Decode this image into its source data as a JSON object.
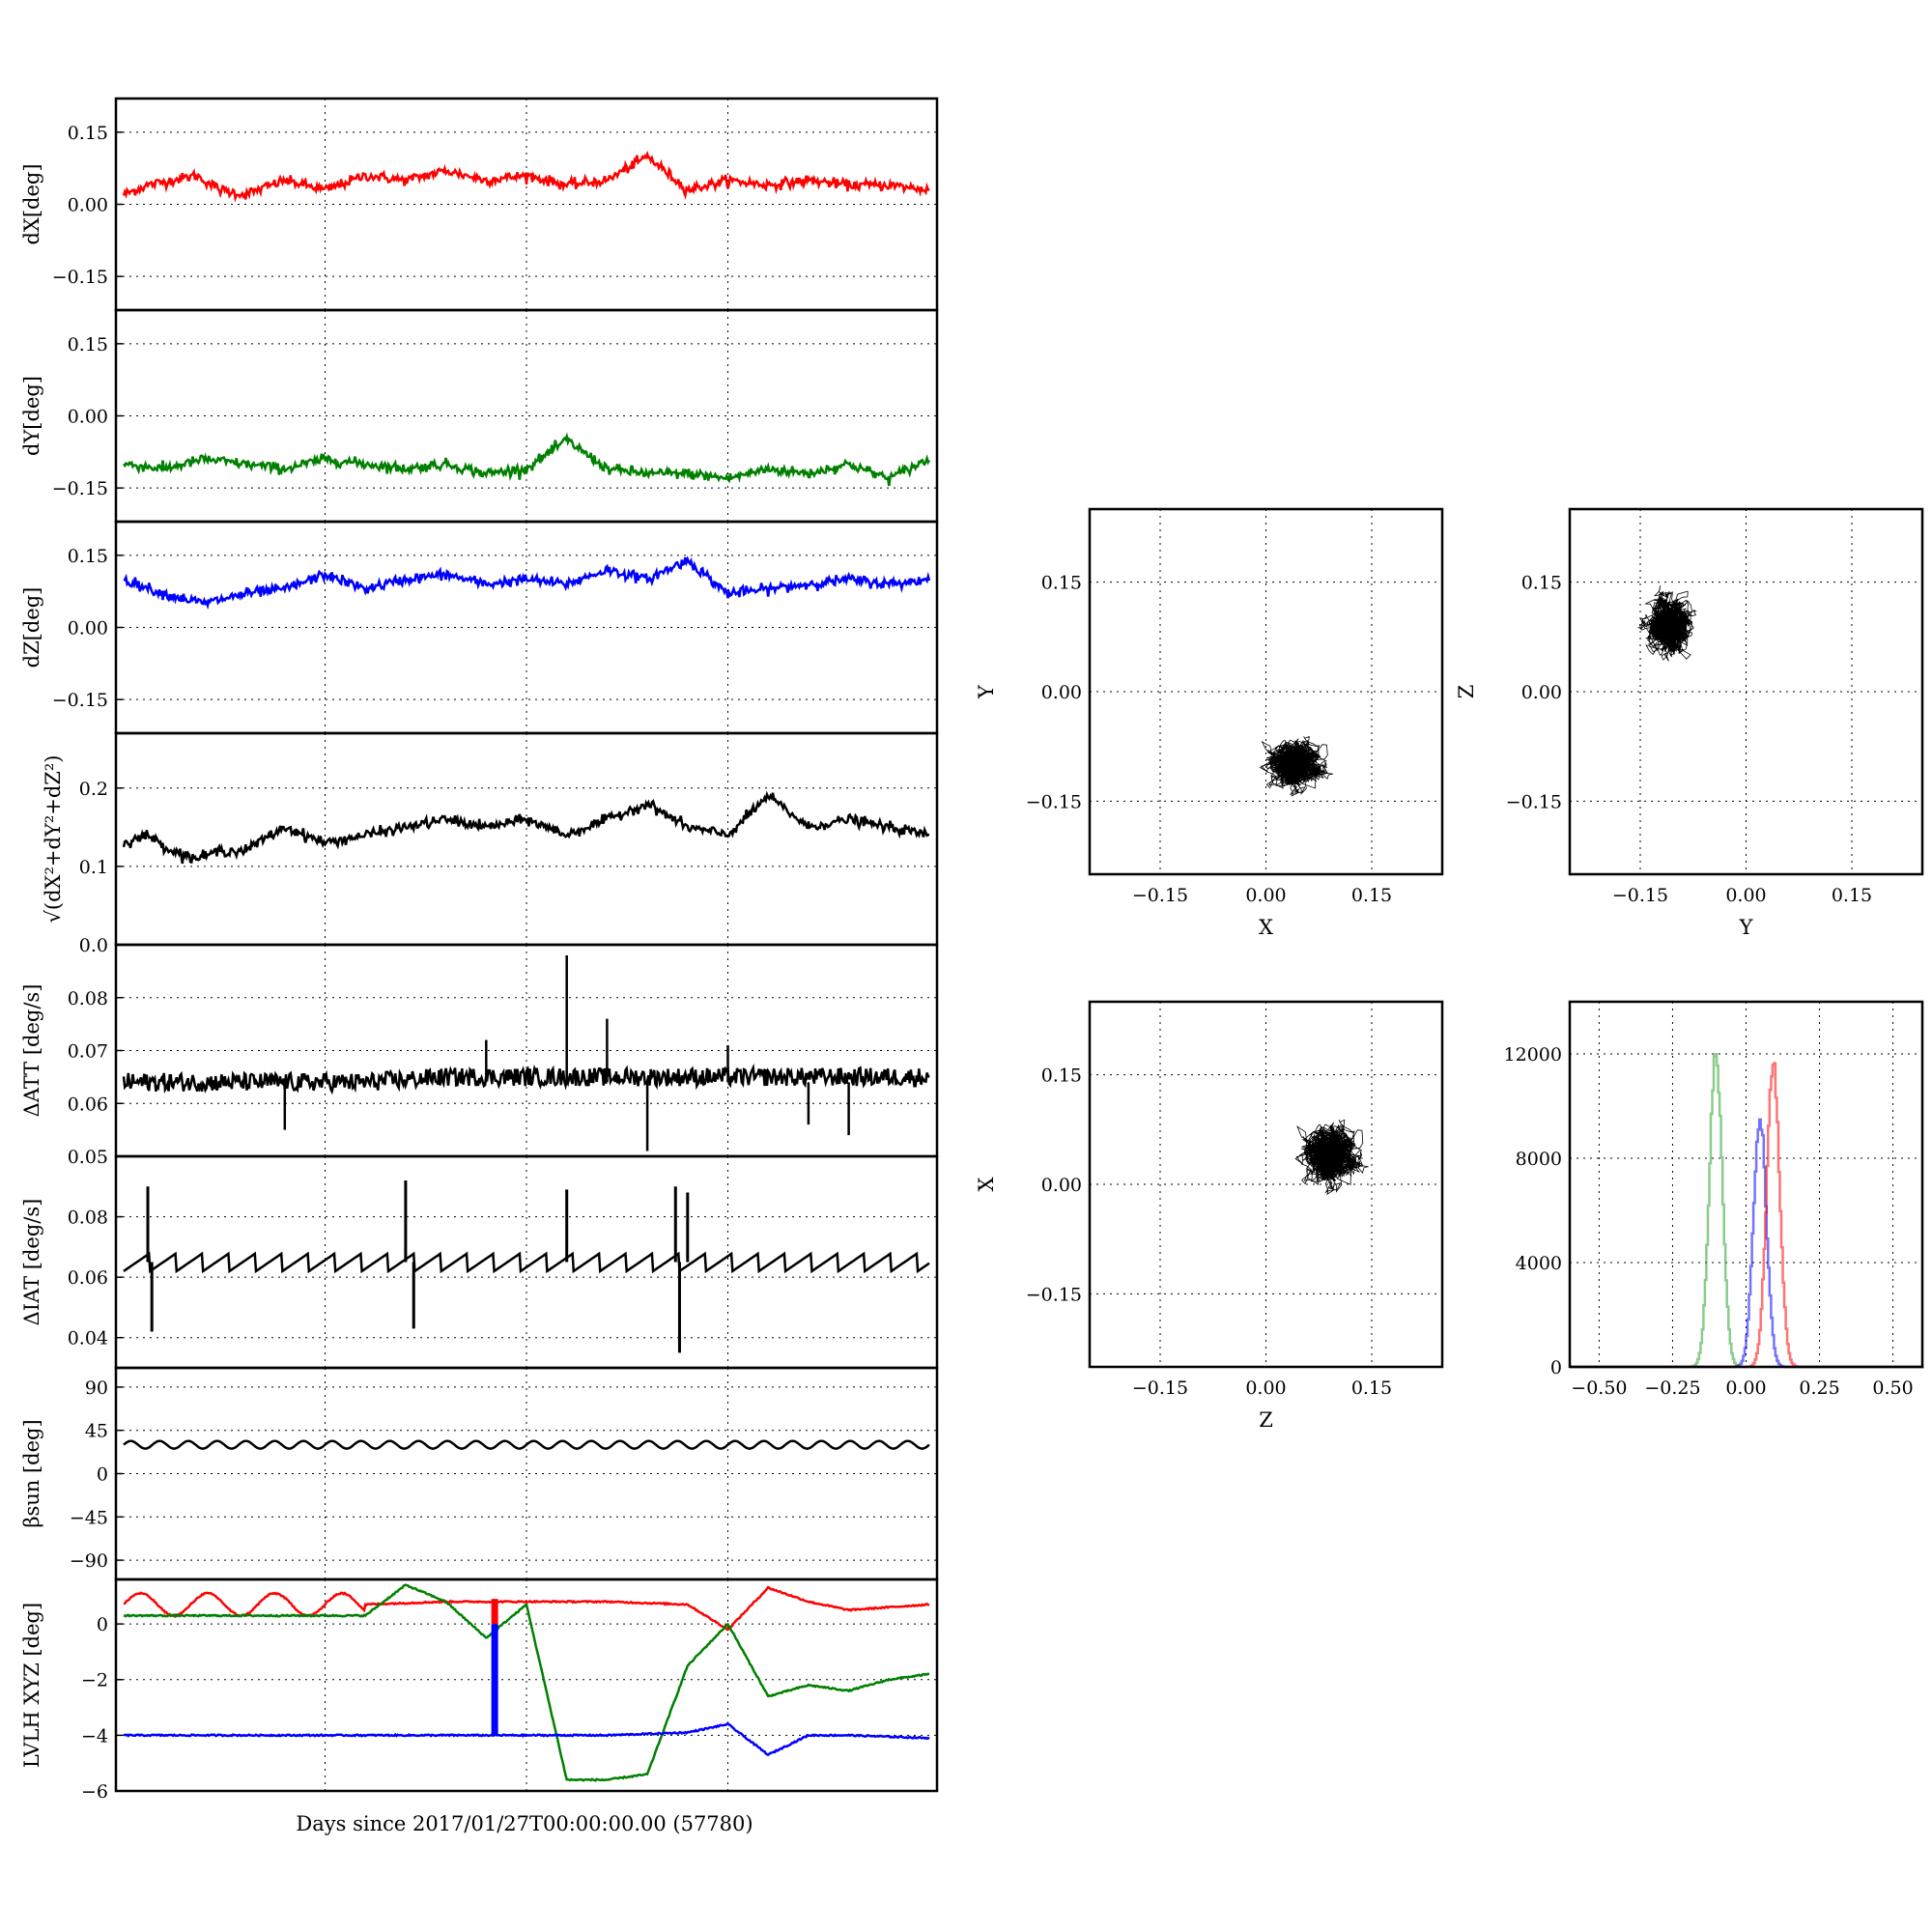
{
  "chart_data": {
    "type": "line",
    "title": "",
    "xlabel": "Days since 2017/01/27T00:00:00.00 (57780)",
    "time_series": {
      "xlim": [
        0,
        1
      ],
      "panels": [
        {
          "id": "dx",
          "ylabel": "dX[deg]",
          "ylim": [
            -0.22,
            0.22
          ],
          "yticks": [
            -0.15,
            0.0,
            0.15
          ],
          "ytick_labels": [
            "−0.15",
            "0.00",
            "0.15"
          ],
          "series": [
            {
              "color": "#ff0000",
              "x": [
                0,
                0.03,
                0.06,
                0.09,
                0.12,
                0.15,
                0.2,
                0.25,
                0.3,
                0.35,
                0.4,
                0.45,
                0.5,
                0.55,
                0.6,
                0.65,
                0.7,
                0.75,
                0.8,
                0.85,
                0.9,
                0.95,
                1.0
              ],
              "y": [
                0.02,
                0.04,
                0.05,
                0.06,
                0.03,
                0.02,
                0.05,
                0.03,
                0.06,
                0.05,
                0.07,
                0.05,
                0.06,
                0.04,
                0.05,
                0.1,
                0.03,
                0.05,
                0.04,
                0.05,
                0.04,
                0.04,
                0.03
              ]
            }
          ]
        },
        {
          "id": "dy",
          "ylabel": "dY[deg]",
          "ylim": [
            -0.22,
            0.22
          ],
          "yticks": [
            -0.15,
            0.0,
            0.15
          ],
          "ytick_labels": [
            "−0.15",
            "0.00",
            "0.15"
          ],
          "series": [
            {
              "color": "#008000",
              "x": [
                0,
                0.05,
                0.1,
                0.15,
                0.2,
                0.25,
                0.3,
                0.35,
                0.4,
                0.45,
                0.5,
                0.55,
                0.6,
                0.65,
                0.7,
                0.75,
                0.8,
                0.85,
                0.9,
                0.95,
                1.0
              ],
              "y": [
                -0.1,
                -0.11,
                -0.09,
                -0.1,
                -0.11,
                -0.09,
                -0.1,
                -0.11,
                -0.1,
                -0.12,
                -0.11,
                -0.05,
                -0.11,
                -0.12,
                -0.12,
                -0.13,
                -0.11,
                -0.12,
                -0.1,
                -0.13,
                -0.09
              ]
            }
          ]
        },
        {
          "id": "dz",
          "ylabel": "dZ[deg]",
          "ylim": [
            -0.22,
            0.22
          ],
          "yticks": [
            -0.15,
            0.0,
            0.15
          ],
          "ytick_labels": [
            "−0.15",
            "0.00",
            "0.15"
          ],
          "series": [
            {
              "color": "#0000ff",
              "x": [
                0,
                0.05,
                0.1,
                0.15,
                0.2,
                0.25,
                0.3,
                0.35,
                0.4,
                0.45,
                0.5,
                0.55,
                0.6,
                0.65,
                0.7,
                0.75,
                0.8,
                0.85,
                0.9,
                0.95,
                1.0
              ],
              "y": [
                0.1,
                0.07,
                0.05,
                0.07,
                0.08,
                0.11,
                0.08,
                0.1,
                0.11,
                0.09,
                0.1,
                0.09,
                0.12,
                0.1,
                0.14,
                0.07,
                0.08,
                0.09,
                0.1,
                0.09,
                0.1
              ]
            }
          ]
        },
        {
          "id": "r",
          "ylabel": "√(dX²+dY²+dZ²)",
          "ylim": [
            0,
            0.27
          ],
          "yticks": [
            0.0,
            0.1,
            0.2
          ],
          "ytick_labels": [
            "0.0",
            "0.1",
            "0.2"
          ],
          "series": [
            {
              "color": "#000000",
              "x": [
                0,
                0.03,
                0.06,
                0.09,
                0.12,
                0.15,
                0.2,
                0.25,
                0.3,
                0.35,
                0.4,
                0.45,
                0.5,
                0.55,
                0.6,
                0.65,
                0.7,
                0.75,
                0.8,
                0.85,
                0.9,
                0.95,
                1.0
              ],
              "y": [
                0.13,
                0.14,
                0.12,
                0.11,
                0.12,
                0.12,
                0.15,
                0.13,
                0.14,
                0.15,
                0.16,
                0.15,
                0.16,
                0.14,
                0.16,
                0.18,
                0.15,
                0.14,
                0.19,
                0.15,
                0.16,
                0.15,
                0.14
              ]
            }
          ]
        },
        {
          "id": "datt",
          "ylabel": "ΔATT [deg/s]",
          "ylim": [
            0.05,
            0.09
          ],
          "yticks": [
            0.05,
            0.06,
            0.07,
            0.08
          ],
          "ytick_labels": [
            "0.05",
            "0.06",
            "0.07",
            "0.08"
          ],
          "series": [
            {
              "color": "#000000",
              "x": [
                0,
                0.1,
                0.2,
                0.3,
                0.4,
                0.45,
                0.5,
                0.55,
                0.6,
                0.65,
                0.7,
                0.8,
                0.9,
                1.0
              ],
              "y": [
                0.064,
                0.064,
                0.064,
                0.064,
                0.065,
                0.065,
                0.065,
                0.065,
                0.065,
                0.065,
                0.065,
                0.065,
                0.065,
                0.065
              ]
            }
          ]
        },
        {
          "id": "diat",
          "ylabel": "ΔIAT [deg/s]",
          "ylim": [
            0.03,
            0.1
          ],
          "yticks": [
            0.04,
            0.06,
            0.08
          ],
          "ytick_labels": [
            "0.04",
            "0.06",
            "0.08"
          ],
          "series": [
            {
              "color": "#000000",
              "x": [
                0,
                0.1,
                0.2,
                0.3,
                0.4,
                0.5,
                0.6,
                0.7,
                0.8,
                0.9,
                1.0
              ],
              "y": [
                0.065,
                0.065,
                0.065,
                0.065,
                0.065,
                0.065,
                0.065,
                0.065,
                0.065,
                0.065,
                0.065
              ]
            }
          ]
        },
        {
          "id": "beta",
          "ylabel": "βsun [deg]",
          "ylim": [
            -110,
            110
          ],
          "yticks": [
            -90,
            -45,
            0,
            45,
            90
          ],
          "ytick_labels": [
            "−90",
            "−45",
            "0",
            "45",
            "90"
          ],
          "series": [
            {
              "color": "#000000",
              "x": [
                0,
                1
              ],
              "y": [
                30,
                30
              ]
            }
          ]
        },
        {
          "id": "lvlh",
          "ylabel": "LVLH XYZ [deg]",
          "ylim": [
            -6,
            1.6
          ],
          "yticks": [
            -6,
            -4,
            -2,
            0
          ],
          "ytick_labels": [
            "−6",
            "−4",
            "−2",
            "0"
          ],
          "series": [
            {
              "color": "#ff0000",
              "x": [
                0,
                0.1,
                0.2,
                0.3,
                0.4,
                0.5,
                0.6,
                0.7,
                0.75,
                0.8,
                0.85,
                0.9,
                0.95,
                1.0
              ],
              "y": [
                0.7,
                0.7,
                0.7,
                0.7,
                0.8,
                0.8,
                0.8,
                0.7,
                -0.2,
                1.3,
                0.8,
                0.5,
                0.6,
                0.7
              ]
            },
            {
              "color": "#008000",
              "x": [
                0,
                0.1,
                0.2,
                0.3,
                0.35,
                0.4,
                0.45,
                0.5,
                0.55,
                0.6,
                0.65,
                0.7,
                0.75,
                0.8,
                0.85,
                0.9,
                0.95,
                1.0
              ],
              "y": [
                0.3,
                0.3,
                0.3,
                0.3,
                1.4,
                0.8,
                -0.5,
                0.7,
                -5.6,
                -5.6,
                -5.4,
                -1.5,
                0,
                -2.6,
                -2.2,
                -2.4,
                -2.0,
                -1.8
              ]
            },
            {
              "color": "#0000ff",
              "x": [
                0,
                0.2,
                0.4,
                0.5,
                0.6,
                0.7,
                0.75,
                0.8,
                0.85,
                0.9,
                1.0
              ],
              "y": [
                -4,
                -4,
                -4,
                -4,
                -4,
                -3.9,
                -3.6,
                -4.7,
                -4,
                -4,
                -4.1
              ]
            }
          ]
        }
      ]
    },
    "scatter_panels": [
      {
        "id": "xy",
        "type": "scatter",
        "xlabel": "X",
        "ylabel": "Y",
        "xlim": [
          -0.25,
          0.25
        ],
        "ylim": [
          -0.25,
          0.25
        ],
        "ticks": [
          -0.15,
          0.0,
          0.15
        ],
        "tick_labels": [
          "−0.15",
          "0.00",
          "0.15"
        ],
        "center": [
          0.04,
          -0.1
        ],
        "spread": [
          0.025,
          0.02
        ]
      },
      {
        "id": "yz",
        "type": "scatter",
        "xlabel": "Y",
        "ylabel": "Z",
        "xlim": [
          -0.25,
          0.25
        ],
        "ylim": [
          -0.25,
          0.25
        ],
        "ticks": [
          -0.15,
          0.0,
          0.15
        ],
        "tick_labels": [
          "−0.15",
          "0.00",
          "0.15"
        ],
        "center": [
          -0.11,
          0.09
        ],
        "spread": [
          0.02,
          0.025
        ]
      },
      {
        "id": "zx",
        "type": "scatter",
        "xlabel": "Z",
        "ylabel": "X",
        "xlim": [
          -0.25,
          0.25
        ],
        "ylim": [
          -0.25,
          0.25
        ],
        "ticks": [
          -0.15,
          0.0,
          0.15
        ],
        "tick_labels": [
          "−0.15",
          "0.00",
          "0.15"
        ],
        "center": [
          0.09,
          0.04
        ],
        "spread": [
          0.025,
          0.025
        ]
      }
    ],
    "histogram": {
      "type": "line",
      "xlim": [
        -0.6,
        0.6
      ],
      "ylim": [
        0,
        14000
      ],
      "xticks": [
        -0.5,
        -0.25,
        0.0,
        0.25,
        0.5
      ],
      "xtick_labels": [
        "−0.50",
        "−0.25",
        "0.00",
        "0.25",
        "0.50"
      ],
      "yticks": [
        0,
        4000,
        8000,
        12000
      ],
      "ytick_labels": [
        "0",
        "4000",
        "8000",
        "12000"
      ],
      "series": [
        {
          "color": "#2ca02c",
          "center": -0.105,
          "peak": 12000,
          "width": 0.022
        },
        {
          "color": "#0000ff",
          "center": 0.045,
          "peak": 9600,
          "width": 0.022
        },
        {
          "color": "#ff0000",
          "center": 0.09,
          "peak": 11600,
          "width": 0.022
        }
      ]
    }
  }
}
